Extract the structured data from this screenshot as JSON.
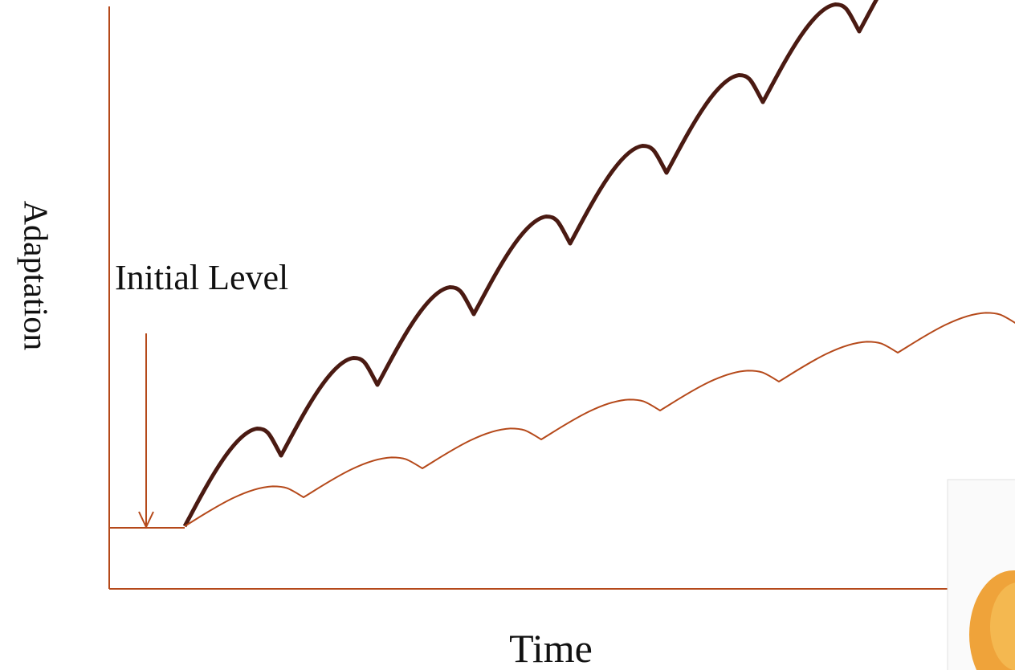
{
  "y_axis_label": "Adaptation",
  "annotation": "Initial Level",
  "x_axis_label": "Time"
}
